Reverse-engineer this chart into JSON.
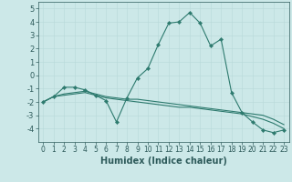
{
  "xlabel": "Humidex (Indice chaleur)",
  "ylabel": "",
  "bg_color": "#cce8e8",
  "line_color": "#2d7a6e",
  "grid_color": "#b8d8d8",
  "xlim": [
    -0.5,
    23.5
  ],
  "ylim": [
    -5,
    5.5
  ],
  "yticks": [
    -4,
    -3,
    -2,
    -1,
    0,
    1,
    2,
    3,
    4,
    5
  ],
  "xticks": [
    0,
    1,
    2,
    3,
    4,
    5,
    6,
    7,
    8,
    9,
    10,
    11,
    12,
    13,
    14,
    15,
    16,
    17,
    18,
    19,
    20,
    21,
    22,
    23
  ],
  "line1_x": [
    0,
    1,
    2,
    3,
    4,
    5,
    6,
    7,
    8,
    9,
    10,
    11,
    12,
    13,
    14,
    15,
    16,
    17,
    18,
    19,
    20,
    21,
    22,
    23
  ],
  "line1_y": [
    -2.0,
    -1.6,
    -0.9,
    -0.9,
    -1.1,
    -1.5,
    -1.9,
    -3.5,
    -1.7,
    -0.2,
    0.5,
    2.3,
    3.9,
    4.0,
    4.7,
    3.9,
    2.2,
    2.7,
    -1.3,
    -2.8,
    -3.5,
    -4.1,
    -4.3,
    -4.1
  ],
  "line2_x": [
    0,
    1,
    2,
    3,
    4,
    5,
    6,
    7,
    8,
    9,
    10,
    11,
    12,
    13,
    14,
    15,
    16,
    17,
    18,
    19,
    20,
    21,
    22,
    23
  ],
  "line2_y": [
    -2.0,
    -1.6,
    -1.4,
    -1.3,
    -1.2,
    -1.4,
    -1.6,
    -1.7,
    -1.8,
    -1.8,
    -1.9,
    -2.0,
    -2.1,
    -2.2,
    -2.3,
    -2.4,
    -2.5,
    -2.6,
    -2.7,
    -2.8,
    -2.9,
    -3.0,
    -3.3,
    -3.7
  ],
  "line3_x": [
    0,
    1,
    2,
    3,
    4,
    5,
    6,
    7,
    8,
    9,
    10,
    11,
    12,
    13,
    14,
    15,
    16,
    17,
    18,
    19,
    20,
    21,
    22,
    23
  ],
  "line3_y": [
    -2.0,
    -1.6,
    -1.5,
    -1.4,
    -1.3,
    -1.5,
    -1.7,
    -1.8,
    -1.9,
    -2.0,
    -2.1,
    -2.2,
    -2.3,
    -2.4,
    -2.4,
    -2.5,
    -2.6,
    -2.7,
    -2.8,
    -2.9,
    -3.1,
    -3.3,
    -3.6,
    -4.0
  ],
  "tick_color": "#2d5a5a",
  "tick_fontsize": 5.5,
  "xlabel_fontsize": 7
}
